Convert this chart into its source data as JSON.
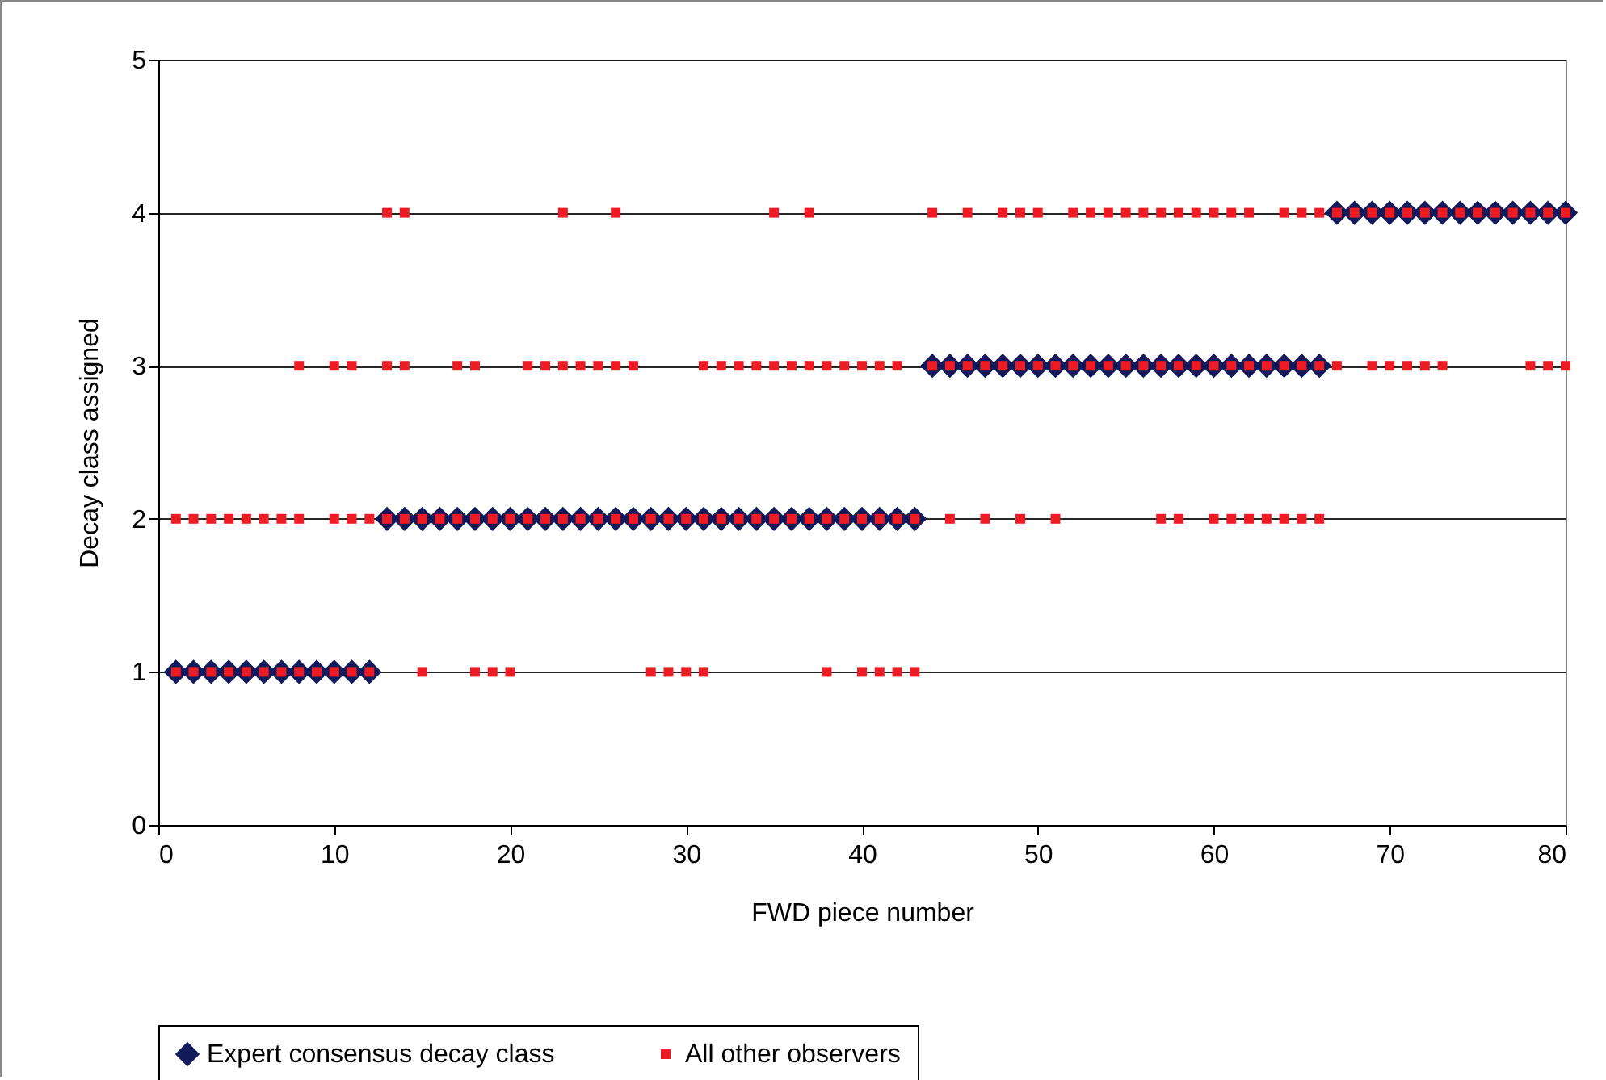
{
  "chart_data": {
    "type": "scatter",
    "xlabel": "FWD piece number",
    "ylabel": "Decay class assigned",
    "xlim": [
      0,
      80
    ],
    "xticks": [
      0,
      10,
      20,
      30,
      40,
      50,
      60,
      70,
      80
    ],
    "ylim": [
      0,
      5
    ],
    "yticks": [
      0,
      1,
      2,
      3,
      4,
      5
    ],
    "grid": "y",
    "legend": "bottom",
    "series": [
      {
        "name": "Expert consensus decay class",
        "color": "#131a5c",
        "marker": "diamond",
        "x": [
          1,
          2,
          3,
          4,
          5,
          6,
          7,
          8,
          9,
          10,
          11,
          12,
          13,
          14,
          15,
          16,
          17,
          18,
          19,
          20,
          21,
          22,
          23,
          24,
          25,
          26,
          27,
          28,
          29,
          30,
          31,
          32,
          33,
          34,
          35,
          36,
          37,
          38,
          39,
          40,
          41,
          42,
          43,
          44,
          45,
          46,
          47,
          48,
          49,
          50,
          51,
          52,
          53,
          54,
          55,
          56,
          57,
          58,
          59,
          60,
          61,
          62,
          63,
          64,
          65,
          66,
          67,
          68,
          69,
          70,
          71,
          72,
          73,
          74,
          75,
          76,
          77,
          78,
          79,
          80
        ],
        "values": [
          1,
          1,
          1,
          1,
          1,
          1,
          1,
          1,
          1,
          1,
          1,
          1,
          2,
          2,
          2,
          2,
          2,
          2,
          2,
          2,
          2,
          2,
          2,
          2,
          2,
          2,
          2,
          2,
          2,
          2,
          2,
          2,
          2,
          2,
          2,
          2,
          2,
          2,
          2,
          2,
          2,
          2,
          2,
          3,
          3,
          3,
          3,
          3,
          3,
          3,
          3,
          3,
          3,
          3,
          3,
          3,
          3,
          3,
          3,
          3,
          3,
          3,
          3,
          3,
          3,
          3,
          4,
          4,
          4,
          4,
          4,
          4,
          4,
          4,
          4,
          4,
          4,
          4,
          4,
          4
        ]
      },
      {
        "name": "All other observers",
        "color": "#ed1c24",
        "marker": "square",
        "x": [
          1,
          2,
          3,
          4,
          5,
          6,
          7,
          8,
          9,
          10,
          11,
          12,
          15,
          18,
          19,
          20,
          28,
          29,
          30,
          31,
          38,
          40,
          41,
          42,
          43,
          1,
          2,
          3,
          4,
          5,
          6,
          7,
          8,
          10,
          11,
          12,
          13,
          14,
          15,
          16,
          17,
          18,
          19,
          20,
          21,
          22,
          23,
          24,
          25,
          26,
          27,
          28,
          29,
          30,
          31,
          32,
          33,
          34,
          35,
          36,
          37,
          38,
          39,
          40,
          41,
          42,
          43,
          45,
          47,
          49,
          51,
          57,
          58,
          60,
          61,
          62,
          63,
          64,
          65,
          66,
          8,
          10,
          11,
          13,
          14,
          17,
          18,
          21,
          22,
          23,
          24,
          25,
          26,
          27,
          31,
          32,
          33,
          34,
          35,
          36,
          37,
          38,
          39,
          40,
          41,
          42,
          44,
          45,
          46,
          47,
          48,
          49,
          50,
          51,
          52,
          53,
          54,
          55,
          56,
          57,
          58,
          59,
          60,
          61,
          62,
          63,
          64,
          65,
          66,
          67,
          69,
          70,
          71,
          72,
          73,
          78,
          79,
          80,
          13,
          14,
          23,
          26,
          35,
          37,
          44,
          46,
          48,
          49,
          50,
          52,
          53,
          54,
          55,
          56,
          57,
          58,
          59,
          60,
          61,
          62,
          64,
          65,
          66,
          67,
          68,
          69,
          70,
          71,
          72,
          73,
          74,
          75,
          76,
          77,
          78,
          79,
          80
        ],
        "values": [
          1,
          1,
          1,
          1,
          1,
          1,
          1,
          1,
          1,
          1,
          1,
          1,
          1,
          1,
          1,
          1,
          1,
          1,
          1,
          1,
          1,
          1,
          1,
          1,
          1,
          2,
          2,
          2,
          2,
          2,
          2,
          2,
          2,
          2,
          2,
          2,
          2,
          2,
          2,
          2,
          2,
          2,
          2,
          2,
          2,
          2,
          2,
          2,
          2,
          2,
          2,
          2,
          2,
          2,
          2,
          2,
          2,
          2,
          2,
          2,
          2,
          2,
          2,
          2,
          2,
          2,
          2,
          2,
          2,
          2,
          2,
          2,
          2,
          2,
          2,
          2,
          2,
          2,
          2,
          2,
          3,
          3,
          3,
          3,
          3,
          3,
          3,
          3,
          3,
          3,
          3,
          3,
          3,
          3,
          3,
          3,
          3,
          3,
          3,
          3,
          3,
          3,
          3,
          3,
          3,
          3,
          3,
          3,
          3,
          3,
          3,
          3,
          3,
          3,
          3,
          3,
          3,
          3,
          3,
          3,
          3,
          3,
          3,
          3,
          3,
          3,
          3,
          3,
          3,
          3,
          3,
          3,
          3,
          3,
          3,
          3,
          3,
          3,
          4,
          4,
          4,
          4,
          4,
          4,
          4,
          4,
          4,
          4,
          4,
          4,
          4,
          4,
          4,
          4,
          4,
          4,
          4,
          4,
          4,
          4,
          4,
          4,
          4,
          4,
          4,
          4,
          4,
          4,
          4,
          4,
          4,
          4,
          4,
          4,
          4,
          4,
          4
        ]
      }
    ]
  }
}
